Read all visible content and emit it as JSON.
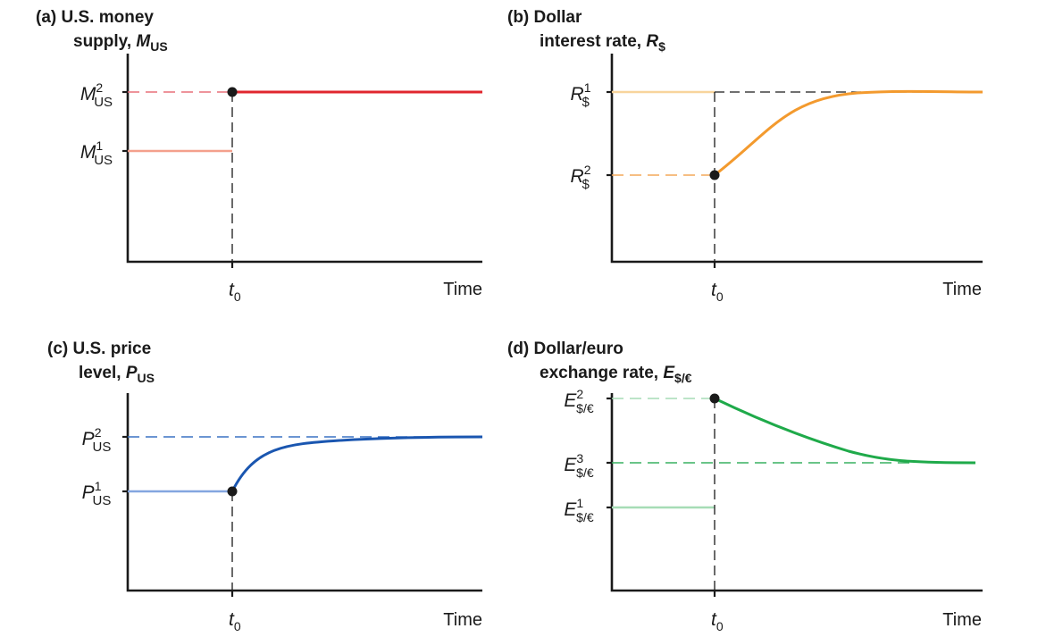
{
  "panels": [
    {
      "id": "a",
      "title_line1": "(a) U.S. money",
      "title_line2_text": "supply, ",
      "title_symbol": "M",
      "title_symbol_sub": "US",
      "x_axis_label": "Time",
      "t0_label": "t",
      "t0_sub": "0",
      "levels": [
        {
          "symbol": "M",
          "sup": "2",
          "sub": "US"
        },
        {
          "symbol": "M",
          "sup": "1",
          "sub": "US"
        }
      ],
      "colors": {
        "strong": "#e0262e",
        "light": "#f4a08c",
        "dash": "#e8707a"
      }
    },
    {
      "id": "b",
      "title_line1": "(b) Dollar",
      "title_line2_text": "interest rate, ",
      "title_symbol": "R",
      "title_symbol_sub": "$",
      "x_axis_label": "Time",
      "t0_label": "t",
      "t0_sub": "0",
      "levels": [
        {
          "symbol": "R",
          "sup": "1",
          "sub": "$"
        },
        {
          "symbol": "R",
          "sup": "2",
          "sub": "$"
        }
      ],
      "colors": {
        "strong": "#f39a2e",
        "light": "#f8d49c",
        "dash": "#f3a85a"
      }
    },
    {
      "id": "c",
      "title_line1": "(c) U.S. price",
      "title_line2_text": "level, ",
      "title_symbol": "P",
      "title_symbol_sub": "US",
      "x_axis_label": "Time",
      "t0_label": "t",
      "t0_sub": "0",
      "levels": [
        {
          "symbol": "P",
          "sup": "2",
          "sub": "US"
        },
        {
          "symbol": "P",
          "sup": "1",
          "sub": "US"
        }
      ],
      "colors": {
        "strong": "#1a56b0",
        "light": "#84a6e0",
        "dash": "#3a72c4"
      }
    },
    {
      "id": "d",
      "title_line1": "(d) Dollar/euro",
      "title_line2_text": "exchange rate, ",
      "title_symbol": "E",
      "title_symbol_sub": "$/€",
      "x_axis_label": "Time",
      "t0_label": "t",
      "t0_sub": "0",
      "levels": [
        {
          "symbol": "E",
          "sup": "2",
          "sub": "$/€"
        },
        {
          "symbol": "E",
          "sup": "3",
          "sub": "$/€"
        },
        {
          "symbol": "E",
          "sup": "1",
          "sub": "$/€"
        }
      ],
      "colors": {
        "strong": "#1faa4a",
        "light": "#a6dcb6",
        "dash": "#38b060"
      }
    }
  ]
}
